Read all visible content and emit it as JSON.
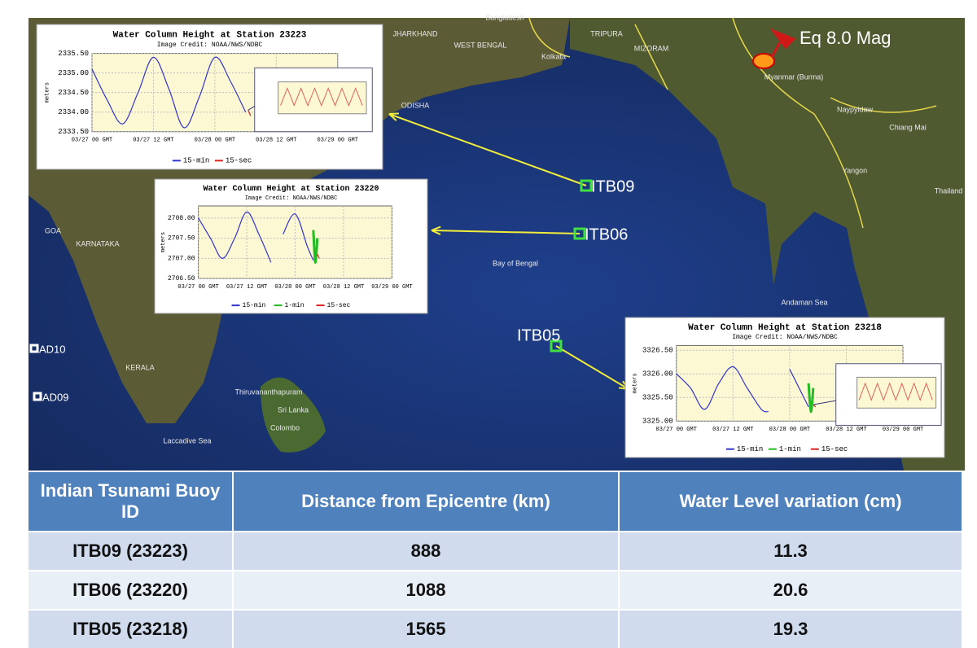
{
  "map": {
    "labels": [
      "Bangladesh",
      "JHARKHAND",
      "WEST BENGAL",
      "TRIPURA",
      "MIZORAM",
      "Kolkata",
      "Myanmar (Burma)",
      "ODISHA",
      "Naypyidaw",
      "Yangon",
      "Chiang Mai",
      "Thailand",
      "Bay of Bengal",
      "Andaman Sea",
      "GOA",
      "KARNATAKA",
      "KERALA",
      "Thiruvananthapuram",
      "Sri Lanka",
      "Colombo",
      "Laccadive Sea"
    ],
    "epicentre": "Eq 8.0 Mag",
    "buoys": [
      "ITB09",
      "ITB06",
      "ITB05",
      "AD10",
      "AD09"
    ]
  },
  "chart_data": [
    {
      "type": "line",
      "title": "Water Column Height at Station 23223",
      "subtitle": "Image Credit: NOAA/NWS/NDBC",
      "y_label": "meters",
      "xlim": [
        0,
        48
      ],
      "xticks": [
        {
          "value": 0,
          "label": "03/27 00 GMT"
        },
        {
          "value": 12,
          "label": "03/27 12 GMT"
        },
        {
          "value": 24,
          "label": "03/28 00 GMT"
        },
        {
          "value": 36,
          "label": "03/28 12 GMT"
        },
        {
          "value": 48,
          "label": "03/29 00 GMT"
        }
      ],
      "ylim": [
        2333.5,
        2335.5
      ],
      "yticks": [
        {
          "value": 2333.5,
          "label": "2333.50"
        },
        {
          "value": 2334,
          "label": "2334.00"
        },
        {
          "value": 2334.5,
          "label": "2334.50"
        },
        {
          "value": 2335,
          "label": "2335.00"
        },
        {
          "value": 2335.5,
          "label": "2335.50"
        }
      ],
      "series": [
        {
          "name": "15-min",
          "color": "#3333cc",
          "x": [
            0,
            3,
            6,
            9,
            12,
            15,
            18,
            21,
            24,
            27,
            30
          ],
          "values": [
            2335.1,
            2334.3,
            2333.7,
            2334.5,
            2335.4,
            2334.6,
            2333.6,
            2334.4,
            2335.4,
            2334.8,
            2334.0
          ]
        },
        {
          "name": "15-sec",
          "color": "#dd2222",
          "x": [
            30.5,
            31
          ],
          "values": [
            2334.05,
            2333.9
          ]
        }
      ]
    },
    {
      "type": "line",
      "title": "Water Column Height at Station 23220",
      "subtitle": "Image Credit: NOAA/NWS/NDBC",
      "y_label": "meters",
      "xlim": [
        0,
        48
      ],
      "xticks": [
        {
          "value": 0,
          "label": "03/27 00 GMT"
        },
        {
          "value": 12,
          "label": "03/27 12 GMT"
        },
        {
          "value": 24,
          "label": "03/28 00 GMT"
        },
        {
          "value": 36,
          "label": "03/28 12 GMT"
        },
        {
          "value": 48,
          "label": "03/29 00 GMT"
        }
      ],
      "ylim": [
        2706.5,
        2708.3
      ],
      "yticks": [
        {
          "value": 2706.5,
          "label": "2706.50"
        },
        {
          "value": 2707,
          "label": "2707.00"
        },
        {
          "value": 2707.5,
          "label": "2707.50"
        },
        {
          "value": 2708,
          "label": "2708.00"
        }
      ],
      "series": [
        {
          "name": "15-min",
          "color": "#3333cc",
          "x": [
            0,
            3,
            6,
            9,
            12,
            15,
            18,
            19.5,
            21,
            24,
            27,
            28.5
          ],
          "values": [
            2708.0,
            2707.5,
            2707.0,
            2707.5,
            2708.15,
            2707.6,
            2706.9,
            null,
            2707.6,
            2708.1,
            2707.3,
            2706.95
          ]
        },
        {
          "name": "1-min",
          "color": "#22bb22",
          "x": [
            28.5,
            29,
            29.5
          ],
          "values": [
            2707.7,
            2706.9,
            2707.5
          ]
        },
        {
          "name": "15-sec",
          "color": "#dd2222",
          "x": [
            29.5,
            30
          ],
          "values": [
            2707.1,
            2707.0
          ]
        }
      ]
    },
    {
      "type": "line",
      "title": "Water Column Height at Station 23218",
      "subtitle": "Image Credit: NOAA/NWS/NDBC",
      "y_label": "meters",
      "xlim": [
        0,
        48
      ],
      "xticks": [
        {
          "value": 0,
          "label": "03/27 00 GMT"
        },
        {
          "value": 12,
          "label": "03/27 12 GMT"
        },
        {
          "value": 24,
          "label": "03/28 00 GMT"
        },
        {
          "value": 36,
          "label": "03/28 12 GMT"
        },
        {
          "value": 48,
          "label": "03/29 00 GMT"
        }
      ],
      "ylim": [
        3325.0,
        3326.6
      ],
      "yticks": [
        {
          "value": 3325,
          "label": "3325.00"
        },
        {
          "value": 3325.5,
          "label": "3325.50"
        },
        {
          "value": 3326,
          "label": "3326.00"
        },
        {
          "value": 3326.5,
          "label": "3326.50"
        }
      ],
      "series": [
        {
          "name": "15-min",
          "color": "#3333cc",
          "x": [
            0,
            3,
            6,
            9,
            12,
            15,
            18,
            19.5,
            21,
            24,
            27,
            28
          ],
          "values": [
            3326.0,
            3325.7,
            3325.25,
            3325.8,
            3326.15,
            3325.7,
            3325.25,
            3325.2,
            null,
            3326.1,
            3325.5,
            3325.3
          ]
        },
        {
          "name": "1-min",
          "color": "#22bb22",
          "x": [
            28,
            28.5,
            29
          ],
          "values": [
            3325.8,
            3325.2,
            3325.7
          ]
        },
        {
          "name": "15-sec",
          "color": "#dd2222",
          "x": [
            29,
            29.5
          ],
          "values": [
            3325.35,
            3325.3
          ]
        }
      ]
    }
  ],
  "table": {
    "header": [
      "Indian Tsunami Buoy ID",
      "Distance from Epicentre (km)",
      "Water Level variation (cm)"
    ],
    "rows": [
      [
        "ITB09 (23223)",
        888,
        11.3
      ],
      [
        "ITB06 (23220)",
        1088,
        20.6
      ],
      [
        "ITB05 (23218)",
        1565,
        19.3
      ]
    ]
  }
}
